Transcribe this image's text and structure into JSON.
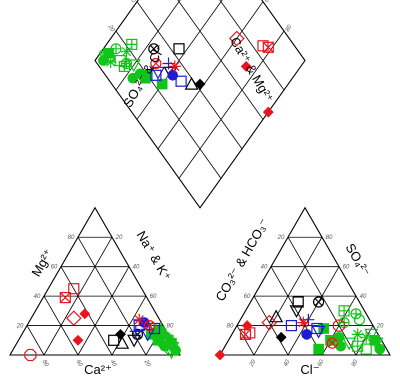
{
  "chart_data": {
    "type": "scatter",
    "title": "",
    "diagram": "piper trilinear",
    "axis_labels": {
      "cation_bottom": "Ca²⁺",
      "cation_left": "Mg²⁺",
      "cation_right": "Na⁺ & K⁺",
      "anion_bottom": "Cl⁻",
      "anion_left": "CO₃²⁻ & HCO₃⁻",
      "anion_right": "SO₄²⁻",
      "diamond_left": "SO₄²⁻ & Cl⁻",
      "diamond_right": "Ca²⁺ & Mg²⁺"
    },
    "ticks": [
      "20",
      "40",
      "60",
      "80"
    ],
    "tick_range_percent": [
      0,
      100
    ],
    "grid": true,
    "legend": "none",
    "colors": {
      "red": "#e8141e",
      "blue": "#1c1cd6",
      "black": "#000000",
      "green": "#12c41a"
    },
    "series": [
      {
        "color": "red",
        "samples": [
          {
            "marker": "square-open",
            "cation": {
              "ca": 40,
              "mg": 45,
              "nak": 15
            },
            "anion": {
              "cl": 10,
              "so4": 15,
              "hco3": 75
            }
          },
          {
            "marker": "square-x",
            "cation": {
              "ca": 48,
              "mg": 39,
              "nak": 13
            },
            "anion": {
              "cl": 8,
              "so4": 14,
              "hco3": 78
            }
          },
          {
            "marker": "diamond-filled",
            "cation": {
              "ca": 42,
              "mg": 28,
              "nak": 30
            },
            "anion": {
              "cl": 6,
              "so4": 20,
              "hco3": 74
            }
          },
          {
            "marker": "diamond-open",
            "cation": {
              "ca": 50,
              "mg": 25,
              "nak": 25
            },
            "anion": {
              "cl": 18,
              "so4": 22,
              "hco3": 60
            }
          },
          {
            "marker": "star",
            "cation": {
              "ca": 12,
              "mg": 24,
              "nak": 64
            },
            "anion": {
              "cl": 38,
              "so4": 22,
              "hco3": 40
            }
          },
          {
            "marker": "octagon-open",
            "cation": {
              "ca": 88,
              "mg": 0,
              "nak": 12
            },
            "anion": {
              "cl": 60,
              "so4": 20,
              "hco3": 20
            }
          },
          {
            "marker": "circle-x",
            "cation": {
              "ca": 8,
              "mg": 20,
              "nak": 72
            },
            "anion": {
              "cl": 62,
              "so4": 8,
              "hco3": 30
            }
          },
          {
            "marker": "diamond-filled",
            "cation": {
              "ca": 55,
              "mg": 10,
              "nak": 35
            },
            "anion": {
              "cl": 0,
              "so4": 0,
              "hco3": 100
            }
          }
        ]
      },
      {
        "color": "black",
        "samples": [
          {
            "marker": "diamond-filled",
            "cation": {
              "ca": 28,
              "mg": 14,
              "nak": 58
            },
            "anion": {
              "cl": 30,
              "so4": 12,
              "hco3": 58
            }
          },
          {
            "marker": "square-open",
            "cation": {
              "ca": 34,
              "mg": 10,
              "nak": 56
            },
            "anion": {
              "cl": 28,
              "so4": 36,
              "hco3": 36
            }
          },
          {
            "marker": "triangle-down-open",
            "cation": {
              "ca": 22,
              "mg": 10,
              "nak": 68
            },
            "anion": {
              "cl": 30,
              "so4": 30,
              "hco3": 40
            }
          },
          {
            "marker": "circle-x",
            "cation": {
              "ca": 18,
              "mg": 14,
              "nak": 68
            },
            "anion": {
              "cl": 40,
              "so4": 36,
              "hco3": 24
            }
          },
          {
            "marker": "triangle-up-open",
            "cation": {
              "ca": 30,
              "mg": 8,
              "nak": 62
            },
            "anion": {
              "cl": 20,
              "so4": 26,
              "hco3": 54
            }
          }
        ]
      },
      {
        "color": "blue",
        "samples": [
          {
            "marker": "square-open",
            "cation": {
              "ca": 14,
              "mg": 20,
              "nak": 66
            },
            "anion": {
              "cl": 32,
              "so4": 20,
              "hco3": 48
            }
          },
          {
            "marker": "circle-filled",
            "cation": {
              "ca": 10,
              "mg": 22,
              "nak": 68
            },
            "anion": {
              "cl": 44,
              "so4": 14,
              "hco3": 42
            }
          },
          {
            "marker": "plus",
            "cation": {
              "ca": 18,
              "mg": 16,
              "nak": 66
            },
            "anion": {
              "cl": 40,
              "so4": 24,
              "hco3": 36
            }
          },
          {
            "marker": "triangle-down-open",
            "cation": {
              "ca": 12,
              "mg": 14,
              "nak": 74
            },
            "anion": {
              "cl": 50,
              "so4": 16,
              "hco3": 34
            }
          },
          {
            "marker": "square-open",
            "cation": {
              "ca": 6,
              "mg": 18,
              "nak": 76
            },
            "anion": {
              "cl": 48,
              "so4": 18,
              "hco3": 34
            }
          }
        ]
      },
      {
        "color": "green",
        "samples": [
          {
            "marker": "square-filled",
            "cation": {
              "ca": 4,
              "mg": 16,
              "nak": 80
            },
            "anion": {
              "cl": 60,
              "so4": 10,
              "hco3": 30
            }
          },
          {
            "marker": "circle-filled",
            "cation": {
              "ca": 3,
              "mg": 14,
              "nak": 83
            },
            "anion": {
              "cl": 68,
              "so4": 6,
              "hco3": 26
            }
          },
          {
            "marker": "triangle-down-open",
            "cation": {
              "ca": 5,
              "mg": 12,
              "nak": 83
            },
            "anion": {
              "cl": 72,
              "so4": 8,
              "hco3": 20
            }
          },
          {
            "marker": "plus-square",
            "cation": {
              "ca": 2,
              "mg": 10,
              "nak": 88
            },
            "anion": {
              "cl": 78,
              "so4": 6,
              "hco3": 16
            }
          },
          {
            "marker": "circle-plus",
            "cation": {
              "ca": 6,
              "mg": 8,
              "nak": 86
            },
            "anion": {
              "cl": 62,
              "so4": 22,
              "hco3": 16
            }
          },
          {
            "marker": "star",
            "cation": {
              "ca": 1,
              "mg": 6,
              "nak": 93
            },
            "anion": {
              "cl": 80,
              "so4": 12,
              "hco3": 8
            }
          },
          {
            "marker": "square-open",
            "cation": {
              "ca": 3,
              "mg": 9,
              "nak": 88
            },
            "anion": {
              "cl": 84,
              "so4": 4,
              "hco3": 12
            }
          },
          {
            "marker": "circle-open",
            "cation": {
              "ca": 4,
              "mg": 4,
              "nak": 92
            },
            "anion": {
              "cl": 70,
              "so4": 24,
              "hco3": 6
            }
          },
          {
            "marker": "triangle-down-open",
            "cation": {
              "ca": 2,
              "mg": 5,
              "nak": 93
            },
            "anion": {
              "cl": 88,
              "so4": 8,
              "hco3": 4
            }
          },
          {
            "marker": "circle-filled",
            "cation": {
              "ca": 1,
              "mg": 3,
              "nak": 96
            },
            "anion": {
              "cl": 92,
              "so4": 4,
              "hco3": 4
            }
          },
          {
            "marker": "square-filled",
            "cation": {
              "ca": 8,
              "mg": 10,
              "nak": 82
            },
            "anion": {
              "cl": 52,
              "so4": 18,
              "hco3": 30
            }
          },
          {
            "marker": "plus-square",
            "cation": {
              "ca": 5,
              "mg": 18,
              "nak": 77
            },
            "anion": {
              "cl": 58,
              "so4": 30,
              "hco3": 12
            }
          },
          {
            "marker": "circle-plus",
            "cation": {
              "ca": 2,
              "mg": 12,
              "nak": 86
            },
            "anion": {
              "cl": 66,
              "so4": 28,
              "hco3": 6
            }
          },
          {
            "marker": "square-filled",
            "cation": {
              "ca": 10,
              "mg": 14,
              "nak": 76
            },
            "anion": {
              "cl": 56,
              "so4": 4,
              "hco3": 40
            }
          },
          {
            "marker": "star",
            "cation": {
              "ca": 3,
              "mg": 15,
              "nak": 82
            },
            "anion": {
              "cl": 74,
              "so4": 14,
              "hco3": 12
            }
          },
          {
            "marker": "triangle-down-open",
            "cation": {
              "ca": 4,
              "mg": 2,
              "nak": 94
            },
            "anion": {
              "cl": 82,
              "so4": 14,
              "hco3": 4
            }
          },
          {
            "marker": "square-filled",
            "cation": {
              "ca": 1,
              "mg": 8,
              "nak": 91
            },
            "anion": {
              "cl": 86,
              "so4": 10,
              "hco3": 4
            }
          },
          {
            "marker": "circle-filled",
            "cation": {
              "ca": 6,
              "mg": 6,
              "nak": 88
            },
            "anion": {
              "cl": 64,
              "so4": 12,
              "hco3": 24
            }
          }
        ]
      }
    ]
  }
}
